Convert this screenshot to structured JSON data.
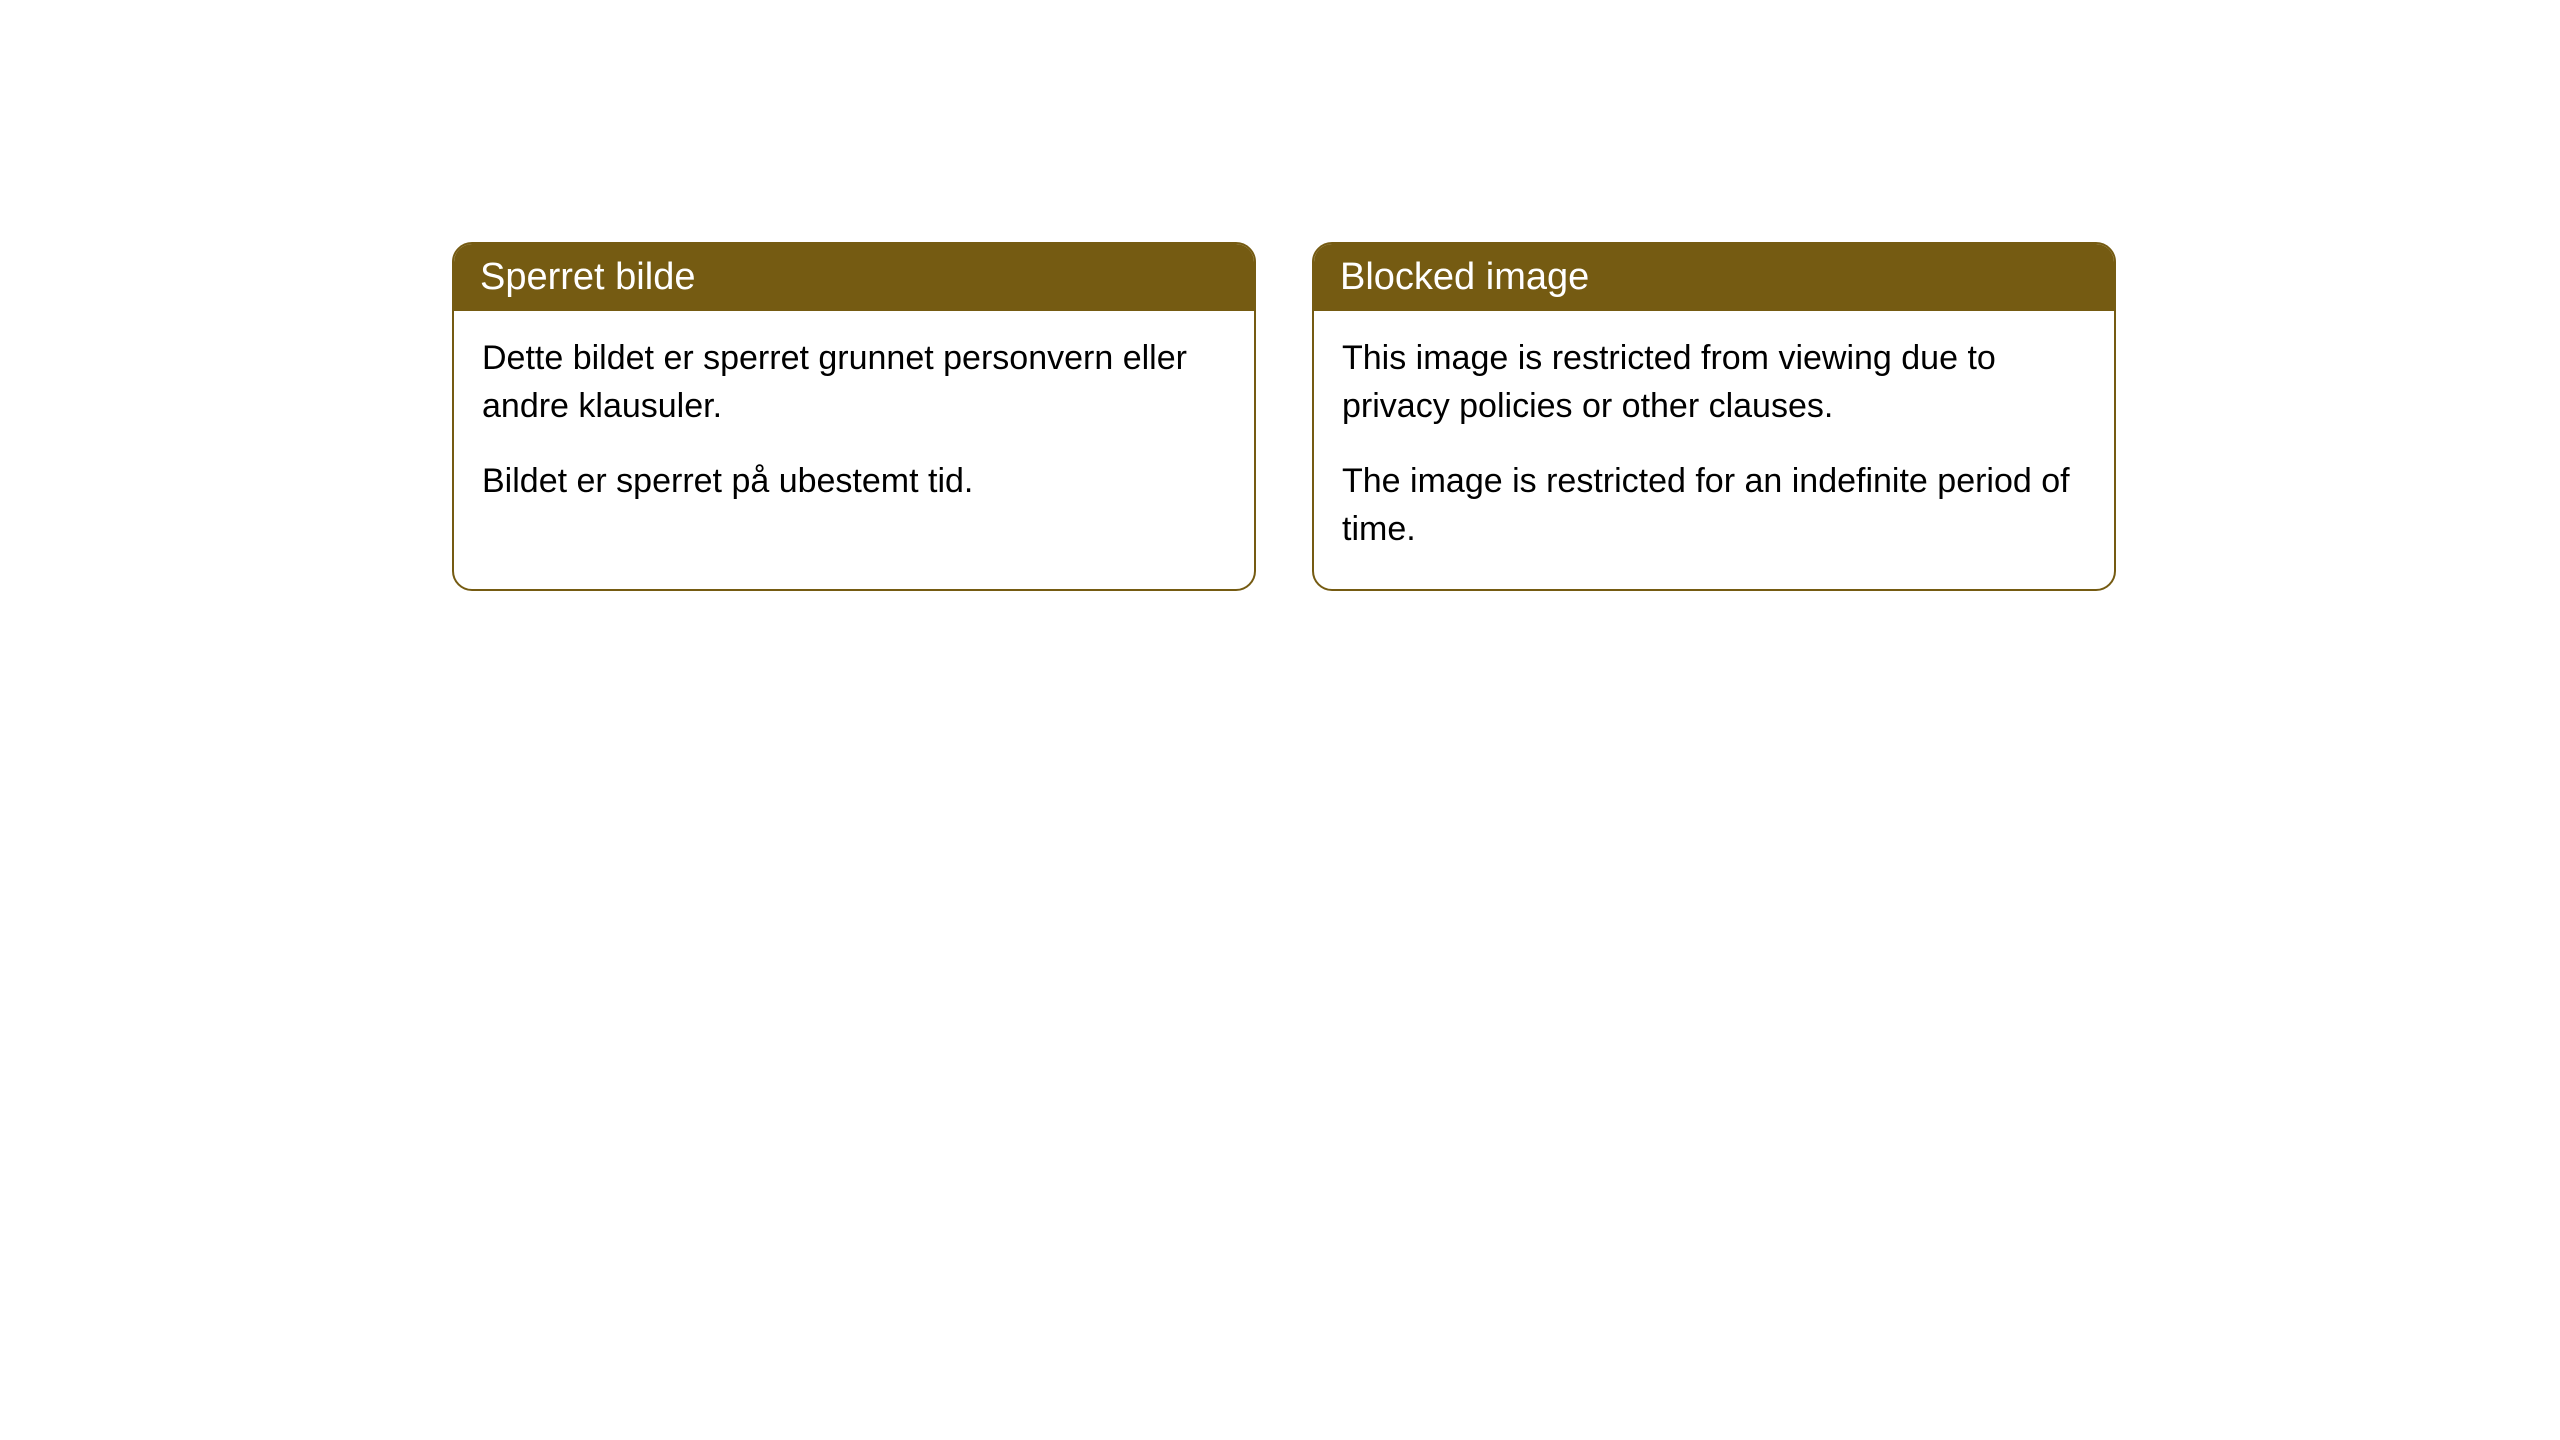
{
  "cards": [
    {
      "title": "Sperret bilde",
      "paragraph1": "Dette bildet er sperret grunnet personvern eller andre klausuler.",
      "paragraph2": "Bildet er sperret på ubestemt tid."
    },
    {
      "title": "Blocked image",
      "paragraph1": "This image is restricted from viewing due to privacy policies or other clauses.",
      "paragraph2": "The image is restricted for an indefinite period of time."
    }
  ],
  "styling": {
    "header_bg_color": "#755b12",
    "header_text_color": "#ffffff",
    "border_color": "#755b12",
    "border_radius": "20px",
    "body_bg_color": "#ffffff",
    "body_text_color": "#000000",
    "header_fontsize": 38,
    "body_fontsize": 34
  }
}
